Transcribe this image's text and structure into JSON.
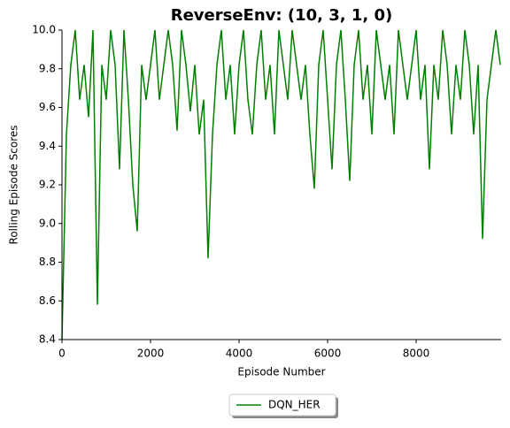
{
  "chart_data": {
    "type": "line",
    "title": "ReverseEnv: (10, 3, 1, 0)",
    "x_label": "Episode Number",
    "y_label": "Rolling Episode Scores",
    "x": [
      0,
      100,
      200,
      300,
      400,
      500,
      600,
      700,
      800,
      900,
      1000,
      1100,
      1200,
      1300,
      1400,
      1500,
      1600,
      1700,
      1800,
      1900,
      2000,
      2100,
      2200,
      2300,
      2400,
      2500,
      2600,
      2700,
      2800,
      2900,
      3000,
      3100,
      3200,
      3300,
      3400,
      3500,
      3600,
      3700,
      3800,
      3900,
      4000,
      4100,
      4200,
      4300,
      4400,
      4500,
      4600,
      4700,
      4800,
      4900,
      5000,
      5100,
      5200,
      5300,
      5400,
      5500,
      5600,
      5700,
      5800,
      5900,
      6000,
      6100,
      6200,
      6300,
      6400,
      6500,
      6600,
      6700,
      6800,
      6900,
      7000,
      7100,
      7200,
      7300,
      7400,
      7500,
      7600,
      7700,
      7800,
      7900,
      8000,
      8100,
      8200,
      8300,
      8400,
      8500,
      8600,
      8700,
      8800,
      8900,
      9000,
      9100,
      9200,
      9300,
      9400,
      9500,
      9600,
      9700,
      9800,
      9900
    ],
    "series": [
      {
        "name": "DQN_HER",
        "color": "#008000",
        "values": [
          8.4,
          9.46,
          9.82,
          10.0,
          9.64,
          9.82,
          9.55,
          10.0,
          8.58,
          9.82,
          9.64,
          10.0,
          9.82,
          9.28,
          10.0,
          9.64,
          9.2,
          8.96,
          9.82,
          9.64,
          9.82,
          10.0,
          9.64,
          9.82,
          10.0,
          9.82,
          9.48,
          10.0,
          9.82,
          9.58,
          9.82,
          9.46,
          9.64,
          8.82,
          9.46,
          9.82,
          10.0,
          9.64,
          9.82,
          9.46,
          9.82,
          10.0,
          9.64,
          9.46,
          9.82,
          10.0,
          9.64,
          9.82,
          9.46,
          10.0,
          9.82,
          9.64,
          10.0,
          9.82,
          9.64,
          9.82,
          9.46,
          9.18,
          9.82,
          10.0,
          9.64,
          9.28,
          9.82,
          10.0,
          9.64,
          9.22,
          9.82,
          10.0,
          9.64,
          9.82,
          9.46,
          10.0,
          9.82,
          9.64,
          9.82,
          9.46,
          10.0,
          9.82,
          9.64,
          9.82,
          10.0,
          9.64,
          9.82,
          9.28,
          9.82,
          9.64,
          10.0,
          9.82,
          9.46,
          9.82,
          9.64,
          10.0,
          9.82,
          9.46,
          9.82,
          8.92,
          9.64,
          9.82,
          10.0,
          9.82
        ]
      }
    ],
    "xlim": [
      0,
      9920
    ],
    "ylim": [
      8.4,
      10.0
    ],
    "xticks": [
      0,
      2000,
      4000,
      6000,
      8000
    ],
    "yticks": [
      8.4,
      8.6,
      8.8,
      {
        "value": 9.0,
        "label": "9.0"
      },
      9.2,
      9.4,
      9.6,
      9.8,
      {
        "value": 10.0,
        "label": "10.0"
      }
    ],
    "legend": "below"
  }
}
